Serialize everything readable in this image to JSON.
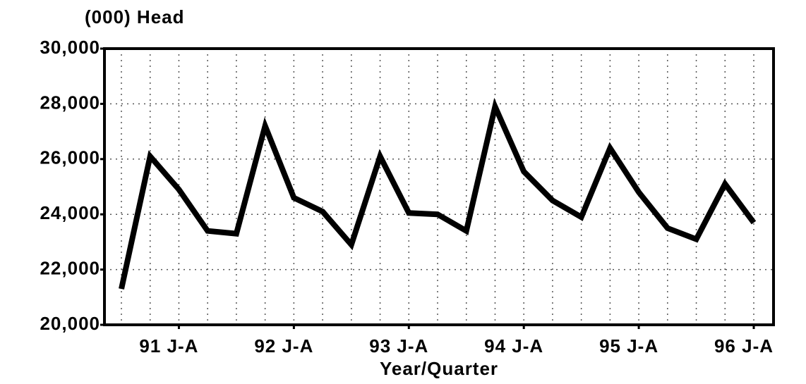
{
  "chart_data": {
    "type": "line",
    "y_axis_label": "(000) Head",
    "x_axis_label": "Year/Quarter",
    "categories": [
      null,
      null,
      "91 J-A",
      null,
      null,
      null,
      "92 J-A",
      null,
      null,
      null,
      "93 J-A",
      null,
      null,
      null,
      "94 J-A",
      null,
      null,
      null,
      "95 J-A",
      null,
      null,
      null,
      "96 J-A"
    ],
    "series": [
      {
        "color": "#000000",
        "values": [
          21300,
          26100,
          24900,
          23400,
          23300,
          27200,
          24600,
          24100,
          22900,
          26100,
          24050,
          24000,
          23400,
          27900,
          25550,
          24500,
          23900,
          26400,
          24800,
          23500,
          23100,
          25100,
          23700
        ]
      }
    ],
    "ylim": [
      20000,
      30000
    ],
    "yticks": [
      {
        "value": 20000,
        "label": "20,000"
      },
      {
        "value": 22000,
        "label": "22,000"
      },
      {
        "value": 24000,
        "label": "24,000"
      },
      {
        "value": 26000,
        "label": "26,000"
      },
      {
        "value": 28000,
        "label": "28,000"
      },
      {
        "value": 30000,
        "label": "30,000"
      }
    ],
    "grid": true
  }
}
